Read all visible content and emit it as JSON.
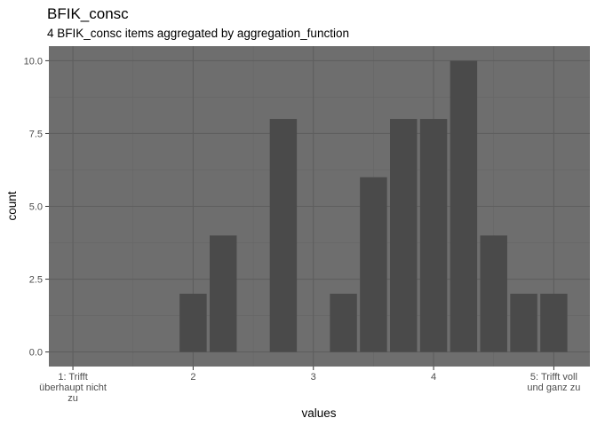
{
  "chart_data": {
    "type": "bar",
    "title": "BFIK_consc",
    "subtitle": "4 BFIK_consc items aggregated by aggregation_function",
    "xlabel": "values",
    "ylabel": "count",
    "xlim": [
      0.8,
      5.3
    ],
    "ylim": [
      -0.5,
      10.5
    ],
    "x_ticks": [
      {
        "value": 1,
        "label": "1: Trifft\nüberhaupt nicht\nzu"
      },
      {
        "value": 2,
        "label": "2"
      },
      {
        "value": 3,
        "label": "3"
      },
      {
        "value": 4,
        "label": "4"
      },
      {
        "value": 5,
        "label": "5: Trifft voll\nund ganz zu"
      }
    ],
    "y_ticks": [
      0.0,
      2.5,
      5.0,
      7.5,
      10.0
    ],
    "y_tick_labels": [
      "0.0",
      "2.5",
      "5.0",
      "7.5",
      "10.0"
    ],
    "x": [
      2.0,
      2.25,
      2.75,
      3.25,
      3.5,
      3.75,
      4.0,
      4.25,
      4.5,
      4.75,
      5.0
    ],
    "values": [
      2,
      4,
      8,
      2,
      6,
      8,
      8,
      10,
      4,
      2,
      2
    ],
    "bar_width": 0.225,
    "grid": true,
    "legend": "none",
    "colors": {
      "panel": "#6e6e6e",
      "bar": "#4a4a4a",
      "grid_major": "#5e5e5e",
      "grid_minor": "#666666"
    }
  }
}
